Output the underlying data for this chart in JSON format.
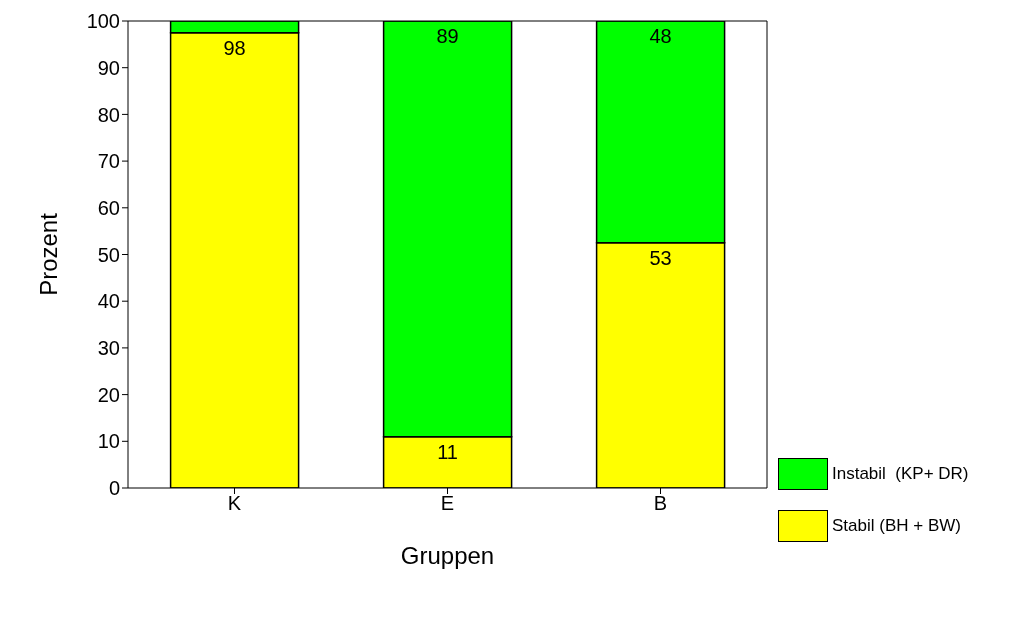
{
  "chart_data": {
    "type": "bar",
    "stacked": true,
    "xlabel": "Gruppen",
    "ylabel": "Prozent",
    "categories": [
      "K",
      "E",
      "B"
    ],
    "series": [
      {
        "name": "Stabil (BH + BW)",
        "color": "#ffff00",
        "values": [
          97.5,
          11,
          52.5
        ],
        "value_labels": [
          "98",
          "11",
          "53"
        ]
      },
      {
        "name": "Instabil  (KP+ DR)",
        "color": "#00ff00",
        "values": [
          2.5,
          89,
          47.5
        ],
        "value_labels": [
          null,
          "89",
          "48"
        ]
      }
    ],
    "ylim": [
      0,
      100
    ],
    "yticks": [
      0,
      10,
      20,
      30,
      40,
      50,
      60,
      70,
      80,
      90,
      100
    ],
    "legend": "right"
  }
}
